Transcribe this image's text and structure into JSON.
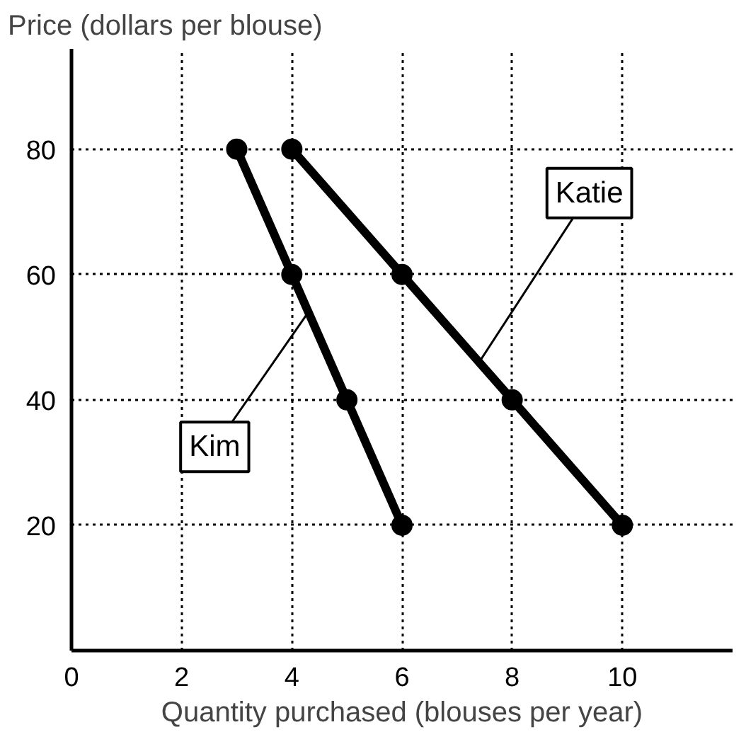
{
  "chart_data": {
    "type": "line",
    "xlabel": "Quantity purchased (blouses per year)",
    "ylabel": "Price (dollars per blouse)",
    "xlim": [
      0,
      12
    ],
    "ylim": [
      0,
      96
    ],
    "xticks": [
      0,
      2,
      4,
      6,
      8,
      10
    ],
    "yticks": [
      20,
      40,
      60,
      80
    ],
    "grid": true,
    "marker": "circle",
    "line_style": "solid",
    "series": [
      {
        "name": "Kim",
        "color": "#000000",
        "x": [
          3,
          4,
          5,
          6
        ],
        "values": [
          80,
          60,
          40,
          20
        ]
      },
      {
        "name": "Katie",
        "color": "#000000",
        "x": [
          4,
          6,
          8,
          10
        ],
        "values": [
          80,
          60,
          40,
          20
        ]
      }
    ]
  }
}
